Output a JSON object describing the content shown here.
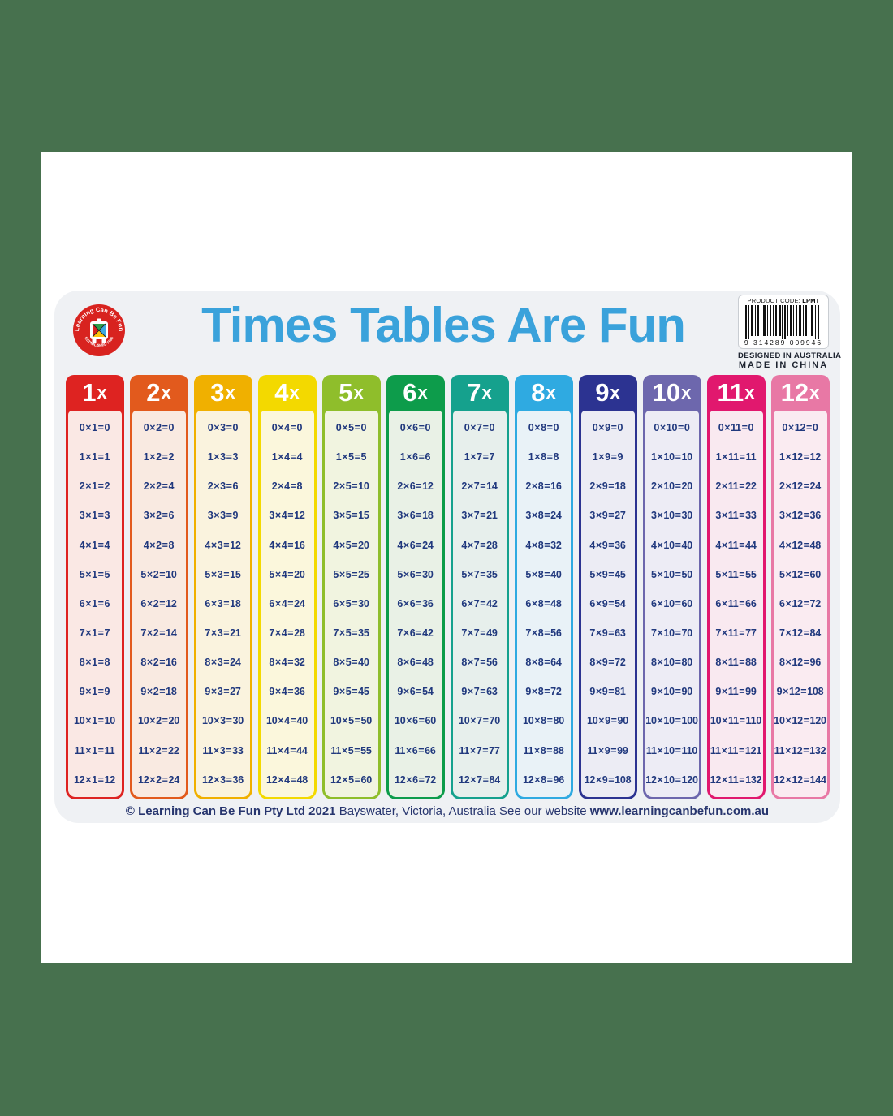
{
  "page": {
    "background_color": "#47714E",
    "sheet_color": "#FFFFFF",
    "mat_color": "#EFF1F4"
  },
  "header": {
    "title": "Times Tables Are Fun",
    "title_color": "#3AA2DB",
    "logo": {
      "ring_text_top": "Learning Can Be Fun",
      "ring_text_bottom": "ESTABLISHED 1986",
      "ring_color": "#D8231F"
    },
    "product": {
      "code_label": "PRODUCT CODE:",
      "code_value": "LPMT",
      "barcode_number": "9 314289 009946",
      "designed": "DESIGNED IN AUSTRALIA",
      "made": "MADE IN CHINA"
    }
  },
  "table": {
    "equation_text_color": "#21397E",
    "columns": [
      {
        "label_num": "1",
        "label_x": "x",
        "color": "#DE2321",
        "tint": "#FAE8E4",
        "rows": [
          "0 × 1 = 0",
          "1 × 1 = 1",
          "2 × 1 = 2",
          "3 × 1 = 3",
          "4 × 1 = 4",
          "5 × 1 = 5",
          "6 × 1 = 6",
          "7 × 1 = 7",
          "8 × 1 = 8",
          "9 × 1 = 9",
          "10 × 1 = 10",
          "11 × 1 = 11",
          "12 × 1 = 12"
        ]
      },
      {
        "label_num": "2",
        "label_x": "x",
        "color": "#E25A1D",
        "tint": "#F9EAE1",
        "rows": [
          "0 × 2 = 0",
          "1 × 2 = 2",
          "2 × 2 = 4",
          "3 × 2 = 6",
          "4 × 2 = 8",
          "5 × 2 = 10",
          "6 × 2 = 12",
          "7 × 2 = 14",
          "8 × 2 = 16",
          "9 × 2 = 18",
          "10 × 2 = 20",
          "11 × 2 = 22",
          "12 × 2 = 24"
        ]
      },
      {
        "label_num": "3",
        "label_x": "x",
        "color": "#F0B000",
        "tint": "#FAF3DE",
        "rows": [
          "0 × 3 = 0",
          "1 × 3 = 3",
          "2 × 3 = 6",
          "3 × 3 = 9",
          "4 × 3 = 12",
          "5 × 3 = 15",
          "6 × 3 = 18",
          "7 × 3 = 21",
          "8 × 3 = 24",
          "9 × 3 = 27",
          "10 × 3 = 30",
          "11 × 3 = 33",
          "12 × 3 = 36"
        ]
      },
      {
        "label_num": "4",
        "label_x": "x",
        "color": "#F3D900",
        "tint": "#FBF7DC",
        "rows": [
          "0 × 4 = 0",
          "1 × 4 = 4",
          "2 × 4 = 8",
          "3 × 4 = 12",
          "4 × 4 = 16",
          "5 × 4 = 20",
          "6 × 4 = 24",
          "7 × 4 = 28",
          "8 × 4 = 32",
          "9 × 4 = 36",
          "10 × 4 = 40",
          "11 × 4 = 44",
          "12 × 4 = 48"
        ]
      },
      {
        "label_num": "5",
        "label_x": "x",
        "color": "#8FBE2B",
        "tint": "#F1F4E0",
        "rows": [
          "0 × 5 = 0",
          "1 × 5 = 5",
          "2 × 5 = 10",
          "3 × 5 = 15",
          "4 × 5 = 20",
          "5 × 5 = 25",
          "6 × 5 = 30",
          "7 × 5 = 35",
          "8 × 5 = 40",
          "9 × 5 = 45",
          "10 × 5 = 50",
          "11 × 5 = 55",
          "12 × 5 = 60"
        ]
      },
      {
        "label_num": "6",
        "label_x": "x",
        "color": "#0D9C4B",
        "tint": "#E9F1E6",
        "rows": [
          "0 × 6 = 0",
          "1 × 6 = 6",
          "2 × 6 = 12",
          "3 × 6 = 18",
          "4 × 6 = 24",
          "5 × 6 = 30",
          "6 × 6 = 36",
          "7 × 6 = 42",
          "8 × 6 = 48",
          "9 × 6 = 54",
          "10 × 6 = 60",
          "11 × 6 = 66",
          "12 × 6 = 72"
        ]
      },
      {
        "label_num": "7",
        "label_x": "x",
        "color": "#15A18D",
        "tint": "#E7EFEC",
        "rows": [
          "0 × 7 = 0",
          "1 × 7 = 7",
          "2 × 7 = 14",
          "3 × 7 = 21",
          "4 × 7 = 28",
          "5 × 7 = 35",
          "6 × 7 = 42",
          "7 × 7 = 49",
          "8 × 7 = 56",
          "9 × 7 = 63",
          "10 × 7 = 70",
          "11 × 7 = 77",
          "12 × 7 = 84"
        ]
      },
      {
        "label_num": "8",
        "label_x": "x",
        "color": "#2FAAE1",
        "tint": "#E9F2F7",
        "rows": [
          "0 × 8 = 0",
          "1 × 8 = 8",
          "2 × 8 = 16",
          "3 × 8 = 24",
          "4 × 8 = 32",
          "5 × 8 = 40",
          "6 × 8 = 48",
          "7 × 8 = 56",
          "8 × 8 = 64",
          "9 × 8 = 72",
          "10 × 8 = 80",
          "11 × 8 = 88",
          "12 × 8 = 96"
        ]
      },
      {
        "label_num": "9",
        "label_x": "x",
        "color": "#2C3391",
        "tint": "#ECECF4",
        "rows": [
          "0 × 9 = 0",
          "1 × 9 = 9",
          "2 × 9 = 18",
          "3 × 9 = 27",
          "4 × 9 = 36",
          "5 × 9 = 45",
          "6 × 9 = 54",
          "7 × 9 = 63",
          "8 × 9 = 72",
          "9 × 9 = 81",
          "10 × 9 = 90",
          "11 × 9 = 99",
          "12 × 9 = 108"
        ]
      },
      {
        "label_num": "10",
        "label_x": "x",
        "color": "#6D67AD",
        "tint": "#EDECF5",
        "rows": [
          "0 × 10 = 0",
          "1 × 10 = 10",
          "2 × 10 = 20",
          "3 × 10 = 30",
          "4 × 10 = 40",
          "5 × 10 = 50",
          "6 × 10 = 60",
          "7 × 10 = 70",
          "8 × 10 = 80",
          "9 × 10 = 90",
          "10 × 10 = 100",
          "11 × 10 = 110",
          "12 × 10 = 120"
        ]
      },
      {
        "label_num": "11",
        "label_x": "x",
        "color": "#E1186E",
        "tint": "#F9E9F0",
        "rows": [
          "0 × 11 = 0",
          "1 × 11 = 11",
          "2 × 11 = 22",
          "3 × 11 = 33",
          "4 × 11 = 44",
          "5 × 11 = 55",
          "6 × 11 = 66",
          "7 × 11 = 77",
          "8 × 11 = 88",
          "9 × 11 = 99",
          "10 × 11 = 110",
          "11 × 11 = 121",
          "12 × 11 = 132"
        ]
      },
      {
        "label_num": "12",
        "label_x": "x",
        "color": "#E878A5",
        "tint": "#FAEBF1",
        "rows": [
          "0 × 12 = 0",
          "1 × 12 = 12",
          "2 × 12 = 24",
          "3 × 12 = 36",
          "4 × 12 = 48",
          "5 × 12 = 60",
          "6 × 12 = 72",
          "7 × 12 = 84",
          "8 × 12 = 96",
          "9 × 12 = 108",
          "10 × 12 = 120",
          "11 × 12 = 132",
          "12 × 12 = 144"
        ]
      }
    ]
  },
  "footer": {
    "bold1": "© Learning Can Be Fun Pty Ltd 2021",
    "regular": " Bayswater, Victoria, Australia  See our website ",
    "bold2": "www.learningcanbefun.com.au"
  }
}
